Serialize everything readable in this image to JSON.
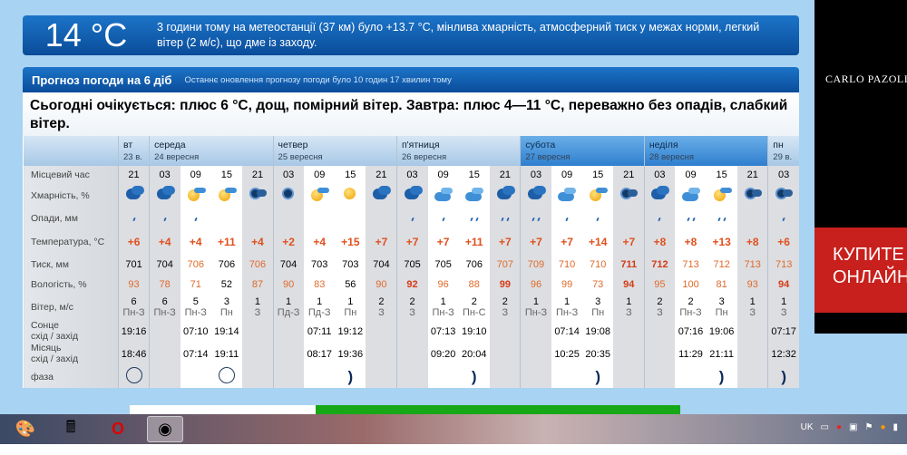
{
  "current": {
    "temp": "14 °C",
    "description": "3 години тому на метеостанції (37 км) було +13.7 °C, мінлива хмарність, атмосферний тиск у межах норми, легкий вітер (2 м/с), що дме із заходу."
  },
  "forecast": {
    "title": "Прогноз погоди на 6 діб",
    "updated": "Останнє оновлення прогнозу погоди було 10 годин 17 хвилин тому",
    "summary": "Сьогодні очікується: плюс 6 °C, дощ, помірний вітер. Завтра: плюс 4—11 °C, переважно без опадів, слабкий вітер.",
    "labels": {
      "time": "Місцевий час",
      "cloud": "Хмарність, %",
      "precip": "Опади, мм",
      "temp": "Температура, °C",
      "pressure": "Тиск, мм",
      "humidity": "Вологість, %",
      "wind": "Вітер, м/с",
      "sun1": "Сонце",
      "sun2": "схід / захід",
      "moon1": "Місяць",
      "moon2": "схід / захід",
      "phase": "фаза"
    },
    "days": [
      {
        "name": "вт",
        "date": "23 в.",
        "span": 1,
        "weekend": false
      },
      {
        "name": "середа",
        "date": "24 вересня",
        "span": 4,
        "weekend": false
      },
      {
        "name": "четвер",
        "date": "25 вересня",
        "span": 4,
        "weekend": false
      },
      {
        "name": "п'ятниця",
        "date": "26 вересня",
        "span": 4,
        "weekend": false
      },
      {
        "name": "субота",
        "date": "27 вересня",
        "span": 4,
        "weekend": true
      },
      {
        "name": "неділя",
        "date": "28 вересня",
        "span": 4,
        "weekend": true
      },
      {
        "name": "пн",
        "date": "29 в.",
        "span": 1,
        "weekend": false
      }
    ],
    "times": [
      "21",
      "03",
      "09",
      "15",
      "21",
      "03",
      "09",
      "15",
      "21",
      "03",
      "09",
      "15",
      "21",
      "03",
      "09",
      "15",
      "21",
      "03",
      "09",
      "15",
      "21",
      "03"
    ],
    "clouds": [
      "cloudy-dark",
      "cloudy-dark",
      "sun-cloud",
      "sun-cloud",
      "night-cloud",
      "night-clear",
      "sun-cloud",
      "sun",
      "cloudy-dark",
      "cloudy-dark",
      "cloud-light",
      "cloud-light",
      "cloudy-dark",
      "cloudy-dark",
      "cloud-light",
      "sun-cloud",
      "night-cloud",
      "cloudy-dark",
      "cloud-light",
      "sun-cloud",
      "night-cloud",
      "night-cloud"
    ],
    "precip_drops": [
      1,
      1,
      1,
      0,
      0,
      0,
      0,
      0,
      0,
      1,
      1,
      2,
      2,
      2,
      1,
      1,
      0,
      1,
      2,
      2,
      0,
      1
    ],
    "temps": [
      "+6",
      "+4",
      "+4",
      "+11",
      "+4",
      "+2",
      "+4",
      "+15",
      "+7",
      "+7",
      "+7",
      "+11",
      "+7",
      "+7",
      "+7",
      "+14",
      "+7",
      "+8",
      "+8",
      "+13",
      "+8",
      "+6"
    ],
    "pressure": [
      "701",
      "704",
      "706",
      "706",
      "706",
      "704",
      "703",
      "703",
      "704",
      "705",
      "705",
      "706",
      "707",
      "709",
      "710",
      "710",
      "711",
      "712",
      "713",
      "712",
      "713",
      "713"
    ],
    "pressure_level": [
      "n",
      "n",
      "hi",
      "n",
      "hi",
      "n",
      "n",
      "n",
      "n",
      "n",
      "n",
      "n",
      "hi",
      "hi",
      "hi",
      "hi",
      "vhi",
      "vhi",
      "hi",
      "hi",
      "hi",
      "hi"
    ],
    "humidity": [
      "93",
      "78",
      "71",
      "52",
      "87",
      "90",
      "83",
      "56",
      "90",
      "92",
      "96",
      "88",
      "99",
      "96",
      "99",
      "73",
      "94",
      "95",
      "100",
      "81",
      "93",
      "94"
    ],
    "humidity_level": [
      "hi",
      "hi",
      "hi",
      "n",
      "hi",
      "hi",
      "hi",
      "n",
      "hi",
      "vhi",
      "hi",
      "hi",
      "vhi",
      "hi",
      "hi",
      "hi",
      "vhi",
      "hi",
      "hi",
      "hi",
      "hi",
      "vhi"
    ],
    "wind_speed": [
      "6",
      "6",
      "5",
      "3",
      "1",
      "1",
      "1",
      "1",
      "2",
      "2",
      "1",
      "2",
      "2",
      "1",
      "1",
      "3",
      "1",
      "2",
      "2",
      "3",
      "1",
      "1"
    ],
    "wind_dir": [
      "Пн-З",
      "Пн-З",
      "Пн-З",
      "Пн",
      "З",
      "Пд-З",
      "Пд-З",
      "Пн",
      "З",
      "З",
      "Пн-З",
      "Пн-С",
      "З",
      "Пн-З",
      "Пн-З",
      "Пн",
      "З",
      "З",
      "Пн-З",
      "Пн",
      "З",
      "З"
    ],
    "sun": [
      "19:16",
      "",
      "07:10",
      "19:14",
      "",
      "",
      "07:11",
      "19:12",
      "",
      "",
      "07:13",
      "19:10",
      "",
      "",
      "07:14",
      "19:08",
      "",
      "",
      "07:16",
      "19:06",
      "",
      "07:17"
    ],
    "moon": [
      "18:46",
      "",
      "07:14",
      "19:11",
      "",
      "",
      "08:17",
      "19:36",
      "",
      "",
      "09:20",
      "20:04",
      "",
      "",
      "10:25",
      "20:35",
      "",
      "",
      "11:29",
      "21:11",
      "",
      "12:32"
    ],
    "phase": [
      "full",
      "",
      "",
      "full",
      "",
      "",
      "",
      "crescent",
      "",
      "",
      "",
      "crescent",
      "",
      "",
      "",
      "crescent",
      "",
      "",
      "",
      "crescent",
      "",
      "crescent"
    ]
  },
  "ad": {
    "brand": "CARLO PAZOLINI",
    "cta": "КУПИТЕ\nОНЛАЙН"
  },
  "taskbar": {
    "items": [
      "paint-icon",
      "calculator-icon",
      "opera-icon",
      "chrome-icon"
    ],
    "lang": "UK"
  }
}
